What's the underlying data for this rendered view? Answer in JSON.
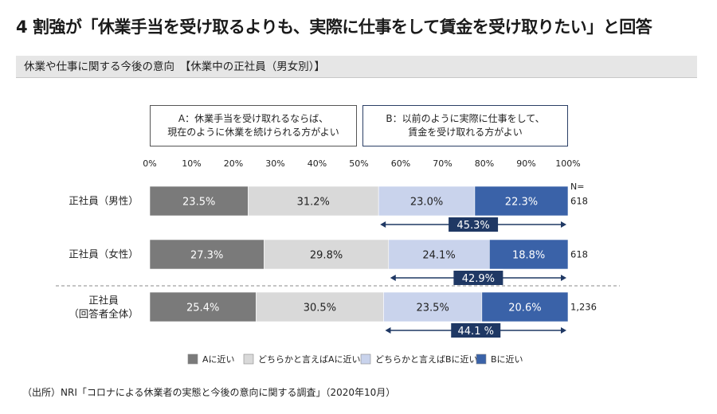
{
  "page": {
    "title": "4 割強が「休業手当を受け取るよりも、実際に仕事をして賃金を受け取りたい」と回答",
    "subtitle": "休業や仕事に関する今後の意向　【休業中の正社員（男女別）】",
    "source": "（出所）NRI「コロナによる休業者の実態と今後の意向に関する調査」（2020年10月）"
  },
  "options": {
    "a_line1": "A：休業手当を受け取れるならば、",
    "a_line2": "現在のように休業を続けられる方がよい",
    "b_line1": "B：以前のように実際に仕事をして、",
    "b_line2": "賃金を受け取れる方がよい"
  },
  "chart_data": {
    "type": "bar",
    "orientation": "horizontal-stacked-100",
    "x_ticks": [
      "0%",
      "10%",
      "20%",
      "30%",
      "40%",
      "50%",
      "60%",
      "70%",
      "80%",
      "90%",
      "100%"
    ],
    "n_header": "N=",
    "categories": [
      "正社員（男性）",
      "正社員（女性）",
      "正社員|（回答者全体）"
    ],
    "n_values": [
      "618",
      "618",
      "1,236"
    ],
    "series": [
      {
        "name": "Aに近い",
        "color": "#7a7a7a",
        "text_color": "#ffffff",
        "values": [
          23.5,
          27.3,
          25.4
        ],
        "labels": [
          "23.5%",
          "27.3%",
          "25.4%"
        ]
      },
      {
        "name": "どちらかと言えばAに近い",
        "color": "#d9d9d9",
        "text_color": "#222222",
        "values": [
          31.2,
          29.8,
          30.5
        ],
        "labels": [
          "31.2%",
          "29.8%",
          "30.5%"
        ]
      },
      {
        "name": "どちらかと言えばBに近い",
        "color": "#c9d3ec",
        "text_color": "#222222",
        "values": [
          23.0,
          24.1,
          23.5
        ],
        "labels": [
          "23.0%",
          "24.1%",
          "23.5%"
        ]
      },
      {
        "name": "Bに近い",
        "color": "#3a62a8",
        "text_color": "#ffffff",
        "values": [
          22.3,
          18.8,
          20.6
        ],
        "labels": [
          "22.3%",
          "18.8%",
          "20.6%"
        ]
      }
    ],
    "b_totals": [
      "45.3%",
      "42.9%",
      "44.1 %"
    ],
    "b_total_color": "#1f3864",
    "legend": [
      "Aに近い",
      "どちらかと言えばAに近い",
      "どちらかと言えばBに近い",
      "Bに近い"
    ]
  }
}
